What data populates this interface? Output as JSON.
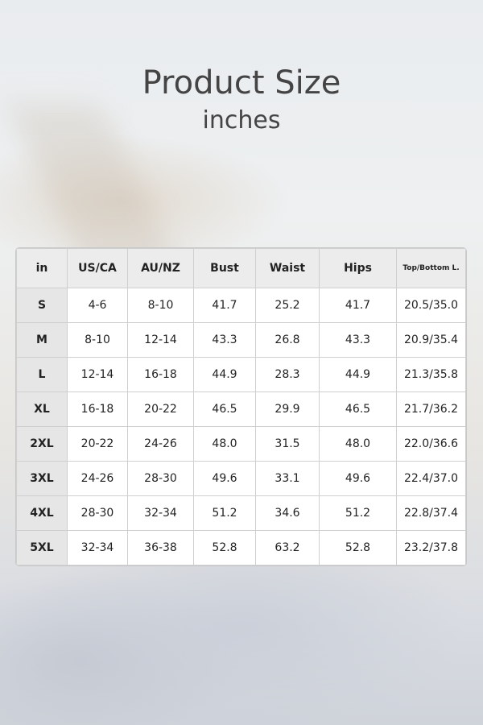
{
  "title": "Product Size",
  "subtitle": "inches",
  "table": {
    "headers": [
      "in",
      "US/CA",
      "AU/NZ",
      "Bust",
      "Waist",
      "Hips",
      "Top/Bottom L."
    ],
    "rows": [
      [
        "S",
        "4-6",
        "8-10",
        "41.7",
        "25.2",
        "41.7",
        "20.5/35.0"
      ],
      [
        "M",
        "8-10",
        "12-14",
        "43.3",
        "26.8",
        "43.3",
        "20.9/35.4"
      ],
      [
        "L",
        "12-14",
        "16-18",
        "44.9",
        "28.3",
        "44.9",
        "21.3/35.8"
      ],
      [
        "XL",
        "16-18",
        "20-22",
        "46.5",
        "29.9",
        "46.5",
        "21.7/36.2"
      ],
      [
        "2XL",
        "20-22",
        "24-26",
        "48.0",
        "31.5",
        "48.0",
        "22.0/36.6"
      ],
      [
        "3XL",
        "24-26",
        "28-30",
        "49.6",
        "33.1",
        "49.6",
        "22.4/37.0"
      ],
      [
        "4XL",
        "28-30",
        "32-34",
        "51.2",
        "34.6",
        "51.2",
        "22.8/37.4"
      ],
      [
        "5XL",
        "32-34",
        "36-38",
        "52.8",
        "63.2",
        "52.8",
        "23.2/37.8"
      ]
    ]
  }
}
